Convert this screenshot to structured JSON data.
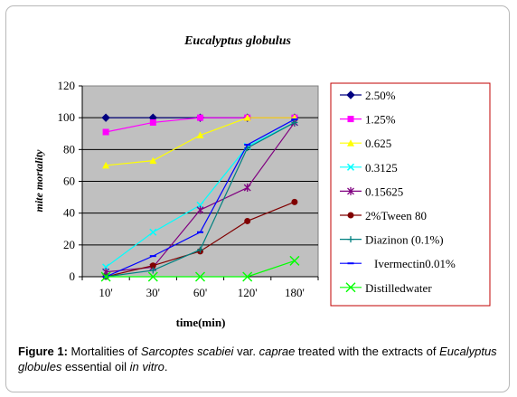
{
  "chart_data": {
    "type": "line",
    "title": "Eucalyptus globulus",
    "xlabel": "time(min)",
    "ylabel": "mite mortality",
    "categories": [
      "10'",
      "30'",
      "60'",
      "120'",
      "180'"
    ],
    "ylim": [
      0,
      120
    ],
    "yticks": [
      0,
      20,
      40,
      60,
      80,
      100,
      120
    ],
    "grid": true,
    "legend_position": "right",
    "series": [
      {
        "name": "2.50%",
        "values": [
          100,
          100,
          100,
          100,
          100
        ],
        "color": "#000080",
        "marker": "diamond"
      },
      {
        "name": "1.25%",
        "values": [
          91,
          97,
          100,
          100,
          100
        ],
        "color": "#ff00ff",
        "marker": "square"
      },
      {
        "name": "0.625",
        "values": [
          70,
          73,
          89,
          100,
          100
        ],
        "color": "#ffff00",
        "marker": "triangle"
      },
      {
        "name": "0.3125",
        "values": [
          6,
          28,
          45,
          82,
          97
        ],
        "color": "#00ffff",
        "marker": "x"
      },
      {
        "name": "0.15625",
        "values": [
          3,
          6,
          42,
          56,
          97
        ],
        "color": "#800080",
        "marker": "star"
      },
      {
        "name": "2%Tween  80",
        "values": [
          0,
          7,
          16,
          35,
          47
        ],
        "color": "#800000",
        "marker": "circle"
      },
      {
        "name": "Diazinon (0.1%)",
        "values": [
          0,
          4,
          17,
          81,
          97
        ],
        "color": "#008080",
        "marker": "plus"
      },
      {
        "name": "Ivermectin0.01%",
        "values": [
          0,
          13,
          28,
          83,
          99
        ],
        "color": "#0000ff",
        "marker": "dash"
      },
      {
        "name": "Distilledwater",
        "values": [
          0,
          0,
          0,
          0,
          10
        ],
        "color": "#00ff00",
        "marker": "bigx"
      }
    ]
  },
  "caption": {
    "label": "Figure 1:",
    "text_1": " Mortalities of ",
    "species": "Sarcoptes scabiei",
    "text_2": " var. ",
    "variety": "caprae",
    "text_3": " treated with the extracts of ",
    "plant": "Eucalyptus globules",
    "text_4": " essential oil ",
    "invitro": "in vitro",
    "text_5": "."
  }
}
